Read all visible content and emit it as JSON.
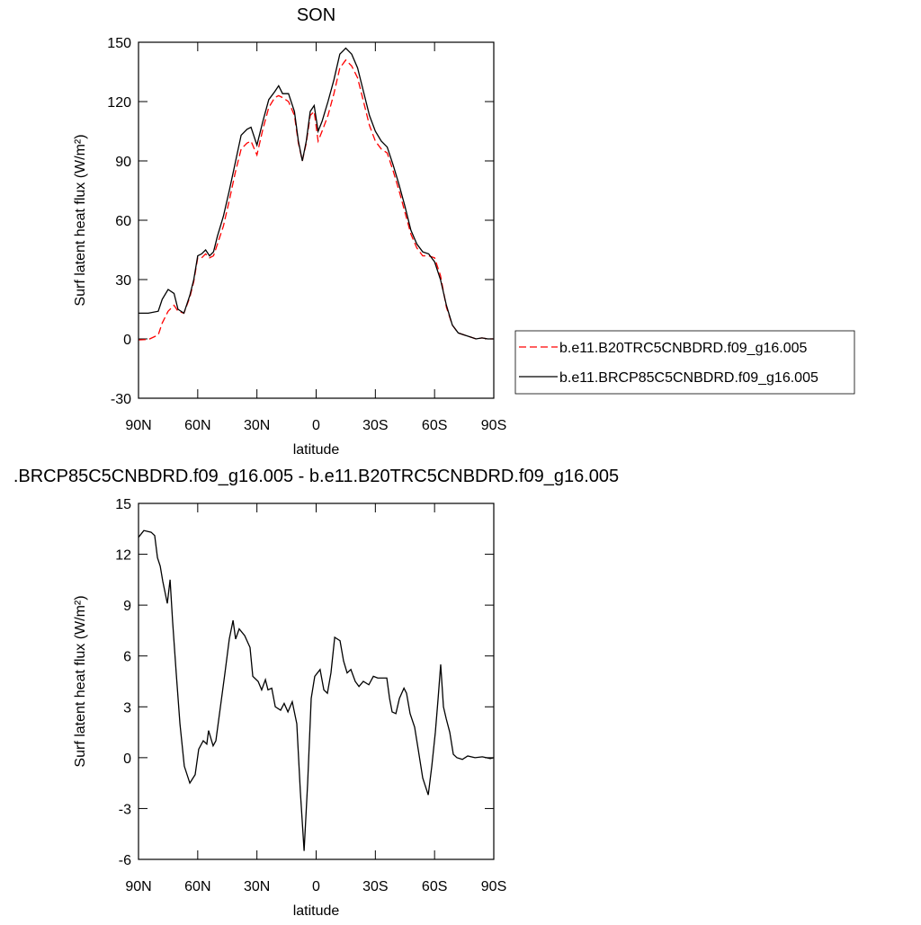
{
  "chart_data": [
    {
      "type": "line",
      "title": "SON",
      "xlabel": "latitude",
      "ylabel": "Surf latent heat flux (W/m²)",
      "x": [
        90,
        85,
        80,
        78,
        75,
        72,
        70,
        67,
        64,
        62,
        60,
        58,
        56,
        54,
        52,
        50,
        47,
        44,
        41,
        38,
        35,
        33,
        30,
        27,
        24,
        21,
        19,
        17,
        14,
        11,
        9,
        7,
        5,
        3,
        1,
        -1,
        -3,
        -6,
        -9,
        -12,
        -15,
        -18,
        -21,
        -24,
        -27,
        -30,
        -33,
        -36,
        -39,
        -42,
        -45,
        -48,
        -51,
        -54,
        -57,
        -60,
        -63,
        -66,
        -69,
        -72,
        -75,
        -78,
        -81,
        -84,
        -87,
        -90
      ],
      "series": [
        {
          "name": "b.e11.B20TRC5CNBDRD.f09_g16.005",
          "color": "#ff0000",
          "line_style": "dashed",
          "values": [
            -0.5,
            -0.3,
            2,
            8,
            14,
            17,
            14,
            13,
            21,
            29,
            41,
            41,
            43,
            41,
            42,
            48,
            57,
            70,
            84,
            96,
            99,
            100,
            93,
            106,
            117,
            122,
            123,
            122,
            120,
            113,
            99,
            90,
            99,
            113,
            115,
            100,
            105,
            113,
            124,
            137,
            141,
            138,
            132,
            120,
            108,
            100,
            96,
            94,
            85,
            75,
            64,
            53,
            46,
            42,
            42,
            41,
            32,
            16,
            7,
            3,
            2,
            1,
            0,
            0.5,
            0,
            0
          ]
        },
        {
          "name": "b.e11.BRCP85C5CNBDRD.f09_g16.005",
          "color": "#000000",
          "line_style": "solid",
          "values": [
            13,
            13,
            14,
            20,
            25,
            23,
            15,
            13,
            22,
            30,
            42,
            43,
            45,
            42,
            44,
            52,
            62,
            75,
            89,
            103,
            106,
            107,
            98,
            110,
            121,
            125,
            128,
            124,
            124,
            115,
            100,
            90,
            100,
            115,
            118,
            105,
            110,
            120,
            131,
            144,
            147,
            144,
            137,
            125,
            113,
            105,
            100,
            97,
            88,
            78,
            67,
            55,
            48,
            44,
            43,
            39,
            30,
            17,
            7,
            3,
            2,
            1,
            0,
            0.5,
            0,
            0
          ]
        }
      ],
      "xlim": [
        90,
        -90
      ],
      "xticks": [
        {
          "value": 90,
          "label": "90N"
        },
        {
          "value": 60,
          "label": "60N"
        },
        {
          "value": 30,
          "label": "30N"
        },
        0,
        {
          "value": -30,
          "label": "30S"
        },
        {
          "value": -60,
          "label": "60S"
        },
        {
          "value": -90,
          "label": "90S"
        }
      ],
      "ylim": [
        -30,
        150
      ],
      "yticks": [
        -30,
        0,
        30,
        60,
        90,
        120,
        150
      ],
      "legend": "right"
    },
    {
      "type": "line",
      "title": ".BRCP85C5CNBDRD.f09_g16.005 - b.e11.B20TRC5CNBDRD.f09_g16.005",
      "xlabel": "latitude",
      "ylabel": "Surf latent heat flux (W/m²)",
      "x": [
        90,
        87.3,
        83.6,
        81.8,
        80.4,
        79,
        77.7,
        75.4,
        74,
        72.7,
        70.9,
        69,
        66.8,
        64,
        61.3,
        59.5,
        57.2,
        55.4,
        54.5,
        52.2,
        50.8,
        48.5,
        46.2,
        44,
        42.1,
        40.8,
        39,
        36.2,
        33.5,
        32.1,
        29.4,
        27.6,
        25.7,
        24.4,
        22.5,
        20.7,
        18,
        16.2,
        14.3,
        12.1,
        9.8,
        8,
        6.1,
        4.3,
        2.5,
        0.7,
        -2,
        -3.9,
        -5.7,
        -7.5,
        -9.4,
        -12.1,
        -13.9,
        -15.7,
        -17.6,
        -19.8,
        -21.7,
        -23.9,
        -26.7,
        -29,
        -31.2,
        -35.8,
        -37.2,
        -38.5,
        -40.4,
        -42.2,
        -44.5,
        -45.8,
        -47.6,
        -49.9,
        -51.7,
        -54,
        -56.8,
        -58.6,
        -60.4,
        -61.8,
        -63.1,
        -64.5,
        -65.9,
        -67.7,
        -69.5,
        -71.3,
        -74.1,
        -76.8,
        -80.5,
        -84.2,
        -88.2,
        -90
      ],
      "series": [
        {
          "color": "#000000",
          "line_style": "solid",
          "values": [
            13,
            13.4,
            13.3,
            13.1,
            11.8,
            11.3,
            10.4,
            9.1,
            10.5,
            8,
            5,
            2,
            -0.5,
            -1.5,
            -1,
            0.5,
            1,
            0.8,
            1.6,
            0.7,
            1,
            3,
            5,
            7,
            8.1,
            7,
            7.6,
            7.2,
            6.5,
            4.8,
            4.5,
            4,
            4.6,
            4,
            4.1,
            3,
            2.8,
            3.2,
            2.7,
            3.3,
            2,
            -2,
            -5.5,
            -1.5,
            3.5,
            4.8,
            5.2,
            4,
            3.8,
            5,
            7.1,
            6.9,
            5.7,
            5,
            5.2,
            4.5,
            4.2,
            4.5,
            4.3,
            4.8,
            4.7,
            4.7,
            3.5,
            2.7,
            2.6,
            3.5,
            4.1,
            3.8,
            2.6,
            1.8,
            0.5,
            -1.2,
            -2.2,
            -0.5,
            1.5,
            3.5,
            5.5,
            3,
            2.3,
            1.5,
            0.2,
            0,
            -0.1,
            0.1,
            0,
            0.05,
            -0.05,
            0
          ]
        }
      ],
      "xlim": [
        90,
        -90
      ],
      "xticks": [
        {
          "value": 90,
          "label": "90N"
        },
        {
          "value": 60,
          "label": "60N"
        },
        {
          "value": 30,
          "label": "30N"
        },
        0,
        {
          "value": -30,
          "label": "30S"
        },
        {
          "value": -60,
          "label": "60S"
        },
        {
          "value": -90,
          "label": "90S"
        }
      ],
      "ylim": [
        -6,
        15
      ],
      "yticks": [
        -6,
        -3,
        0,
        3,
        6,
        9,
        12,
        15
      ]
    }
  ]
}
